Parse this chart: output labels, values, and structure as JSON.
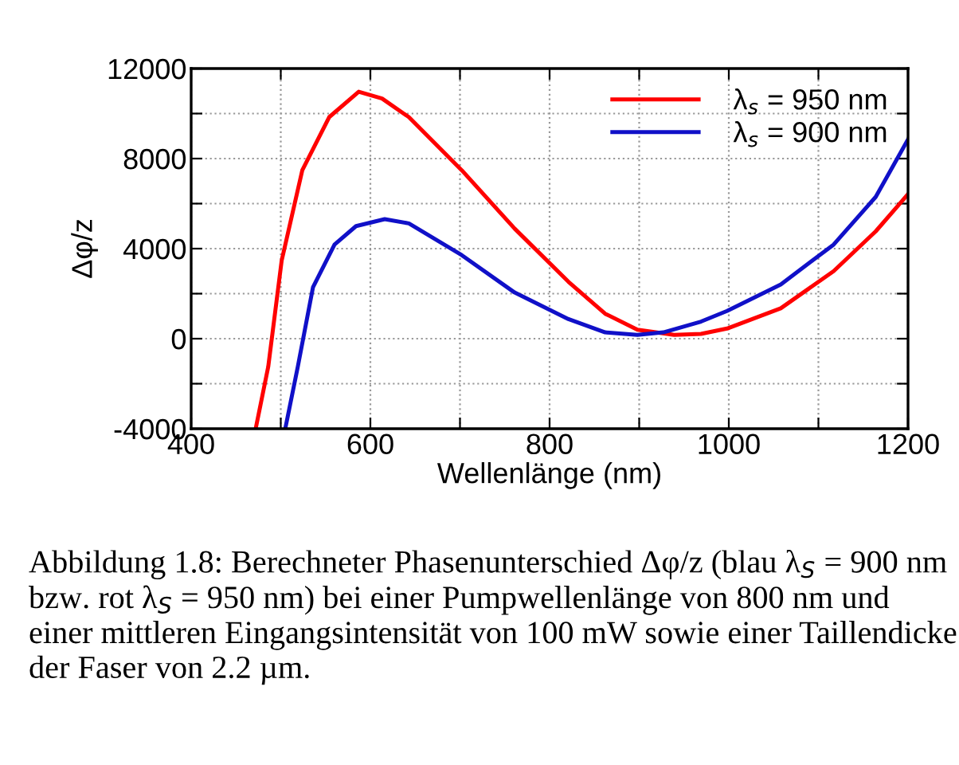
{
  "chart_data": {
    "type": "line",
    "xlabel": "Wellenlänge (nm)",
    "ylabel": "Δφ/z",
    "series": [
      {
        "name": "λ$_{s}$ = 950 nm",
        "color": "#ff0000",
        "x": [
          472,
          486,
          501,
          524,
          554,
          587,
          613,
          643,
          702,
          761,
          821,
          862,
          898,
          939,
          969,
          998,
          1058,
          1117,
          1164,
          1200
        ],
        "values": [
          -4000,
          -1250,
          3470,
          7480,
          9840,
          10970,
          10670,
          9840,
          7480,
          4890,
          2530,
          1110,
          400,
          170,
          210,
          450,
          1350,
          3000,
          4770,
          6420
        ]
      },
      {
        "name": "λ$_{s}$ = 900 nm",
        "color": "#1010c8",
        "x": [
          505,
          519,
          536,
          560,
          584,
          616,
          643,
          702,
          761,
          821,
          862,
          898,
          927,
          969,
          998,
          1058,
          1117,
          1164,
          1200
        ],
        "values": [
          -4000,
          -1250,
          2290,
          4180,
          5000,
          5310,
          5120,
          3710,
          2050,
          870,
          280,
          170,
          280,
          760,
          1230,
          2410,
          4180,
          6300,
          8850
        ]
      }
    ],
    "xlim": [
      400,
      1200
    ],
    "ylim": [
      -4000,
      12000
    ],
    "xticks": [
      400,
      {
        "value": 500,
        "label": null
      },
      600,
      {
        "value": 700,
        "label": null
      },
      800,
      {
        "value": 900,
        "label": null
      },
      1000,
      {
        "value": 1100,
        "label": null
      },
      1200
    ],
    "yticks": [
      -4000,
      {
        "value": -2000,
        "label": null
      },
      0,
      {
        "value": 2000,
        "label": null
      },
      4000,
      {
        "value": 6000,
        "label": null
      },
      8000,
      {
        "value": 10000,
        "label": null
      },
      12000
    ],
    "grid": true,
    "legend": "top right",
    "line_style": "solid",
    "marker": "none",
    "annotations": [
      "Abbildung 1.8: Berechneter Phasenunterschied Δφ/z (blau λ$_{S}$ = 900 nm bzw. rot λ$_{S}$ = 950 nm) bei einer Pumpwellenlänge von 800 nm und einer mittleren Eingangsintensität von 100 mW sowie einer Taillendicke der Faser von 2.2 µm."
    ]
  }
}
